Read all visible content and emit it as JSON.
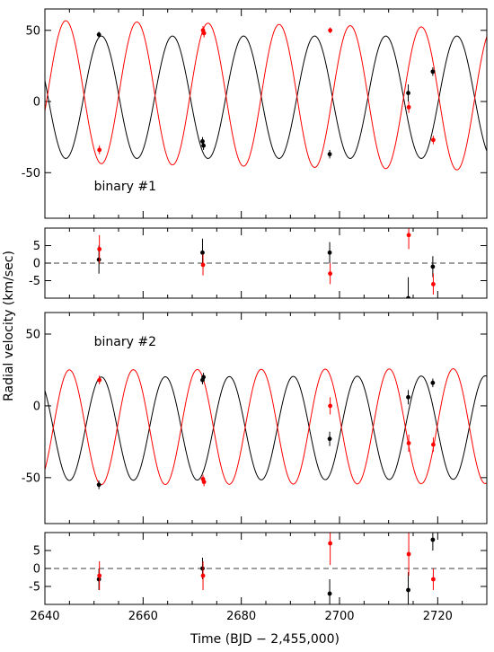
{
  "chart_data": {
    "type": "scatter",
    "xlabel": "Time (BJD − 2,455,000)",
    "ylabel": "Radial velocity (km/sec)",
    "xlim": [
      2640,
      2730
    ],
    "x_ticks": [
      2640,
      2660,
      2680,
      2700,
      2720
    ],
    "colors": {
      "black": "#000000",
      "red": "#ff0000"
    },
    "panels": [
      {
        "id": "rv1",
        "annotation": "binary #1",
        "ylim": [
          -82,
          65
        ],
        "y_ticks": [
          -50,
          0,
          50
        ],
        "zero_line": false,
        "models": [
          {
            "color": "#000000",
            "amp": 43,
            "period": 14.48,
            "phase_x": 2651.5,
            "offset": 3,
            "drift": 0
          },
          {
            "color": "#ff0000",
            "amp": 50,
            "period": 14.48,
            "phase_x": 2644.26,
            "offset": 7,
            "drift": -0.06
          }
        ],
        "points": [
          {
            "color": "#000000",
            "data": [
              [
                2651.0,
                47,
                2
              ],
              [
                2672.1,
                -28,
                3
              ],
              [
                2672.3,
                -31,
                3
              ],
              [
                2698.0,
                -37,
                3
              ],
              [
                2714.0,
                6,
                6
              ],
              [
                2719.0,
                21,
                3
              ]
            ]
          },
          {
            "color": "#ff0000",
            "data": [
              [
                2651.1,
                -34,
                3
              ],
              [
                2672.2,
                50,
                3
              ],
              [
                2672.4,
                48,
                3
              ],
              [
                2698.1,
                50,
                2
              ],
              [
                2714.1,
                -4,
                4
              ],
              [
                2719.1,
                -27,
                3
              ]
            ]
          }
        ]
      },
      {
        "id": "res1",
        "annotation": "",
        "ylim": [
          -10,
          10
        ],
        "y_ticks": [
          -5,
          0,
          5
        ],
        "zero_line": true,
        "models": [],
        "points": [
          {
            "color": "#000000",
            "data": [
              [
                2651.0,
                1,
                4
              ],
              [
                2672.1,
                3,
                4
              ],
              [
                2698.0,
                3,
                3
              ],
              [
                2714.0,
                -10,
                6
              ],
              [
                2719.0,
                -1,
                3
              ]
            ]
          },
          {
            "color": "#ff0000",
            "data": [
              [
                2651.1,
                4,
                4
              ],
              [
                2672.2,
                -0.5,
                3
              ],
              [
                2698.1,
                -3,
                3
              ],
              [
                2714.1,
                8,
                4
              ],
              [
                2719.1,
                -6,
                3
              ]
            ]
          }
        ]
      },
      {
        "id": "rv2",
        "annotation": "binary #2",
        "ylim": [
          -82,
          65
        ],
        "y_ticks": [
          -50,
          0,
          50
        ],
        "zero_line": false,
        "models": [
          {
            "color": "#000000",
            "amp": 36,
            "period": 13.03,
            "phase_x": 2651.5,
            "offset": -16,
            "drift": 0.01
          },
          {
            "color": "#ff0000",
            "amp": 40,
            "period": 13.03,
            "phase_x": 2644.98,
            "offset": -15,
            "drift": 0.01
          }
        ],
        "points": [
          {
            "color": "#000000",
            "data": [
              [
                2651.0,
                -55,
                3
              ],
              [
                2672.1,
                18,
                3
              ],
              [
                2672.3,
                20,
                3
              ],
              [
                2698.0,
                -23,
                5
              ],
              [
                2714.0,
                6,
                5
              ],
              [
                2719.0,
                16,
                3
              ]
            ]
          },
          {
            "color": "#ff0000",
            "data": [
              [
                2651.1,
                18,
                3
              ],
              [
                2672.2,
                -51,
                3
              ],
              [
                2672.4,
                -53,
                3
              ],
              [
                2698.1,
                0,
                6
              ],
              [
                2714.1,
                -26,
                6
              ],
              [
                2719.1,
                -27,
                5
              ]
            ]
          }
        ]
      },
      {
        "id": "res2",
        "annotation": "",
        "ylim": [
          -10,
          10
        ],
        "y_ticks": [
          -5,
          0,
          5
        ],
        "zero_line": true,
        "models": [],
        "points": [
          {
            "color": "#000000",
            "data": [
              [
                2651.0,
                -3,
                3
              ],
              [
                2672.1,
                0,
                3
              ],
              [
                2698.0,
                -7,
                4
              ],
              [
                2714.0,
                -6,
                5
              ],
              [
                2719.0,
                8,
                3
              ]
            ]
          },
          {
            "color": "#ff0000",
            "data": [
              [
                2651.1,
                -2,
                4
              ],
              [
                2672.2,
                -2,
                4
              ],
              [
                2698.1,
                7,
                6
              ],
              [
                2714.1,
                4,
                6
              ],
              [
                2719.1,
                -3,
                3
              ]
            ]
          }
        ]
      }
    ]
  }
}
